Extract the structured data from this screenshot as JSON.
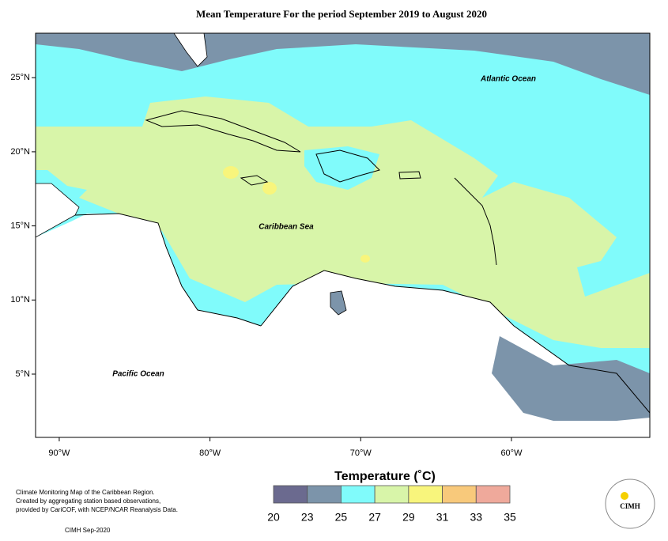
{
  "map": {
    "title": "Mean Temperature For the period September 2019 to August 2020",
    "xlim": [
      -91.57,
      -50.82
    ],
    "ylim": [
      0.73,
      28
    ],
    "xticks": [
      {
        "value": -90,
        "label": "90°W"
      },
      {
        "value": -80,
        "label": "80°W"
      },
      {
        "value": -70,
        "label": "70°W"
      },
      {
        "value": -60,
        "label": "60°W"
      }
    ],
    "yticks": [
      {
        "value": 25,
        "label": "25°N"
      },
      {
        "value": 20,
        "label": "20°N"
      },
      {
        "value": 15,
        "label": "15°N"
      },
      {
        "value": 10,
        "label": "10°N"
      },
      {
        "value": 5,
        "label": "5°N"
      }
    ],
    "labels": {
      "atlantic": "Atlantic Ocean",
      "caribbean": "Caribbean Sea",
      "pacific": "Pacific Ocean"
    },
    "legend": {
      "title": "Temperature (˚C)",
      "ticks": [
        20,
        23,
        25,
        27,
        29,
        31,
        33,
        35
      ],
      "colors": [
        "#6b6a8f",
        "#7c94aa",
        "#80fbfb",
        "#d8f5a9",
        "#f8f57c",
        "#f8c97b",
        "#efa99b"
      ]
    },
    "notes": [
      "Climate Monitoring Map of the Caribbean Region.",
      "Created by aggregating station based observations,",
      "provided by CariCOF, with NCEP/NCAR Reanalysis Data."
    ],
    "credit": "CIMH Sep-2020",
    "logo": "CIMH"
  }
}
